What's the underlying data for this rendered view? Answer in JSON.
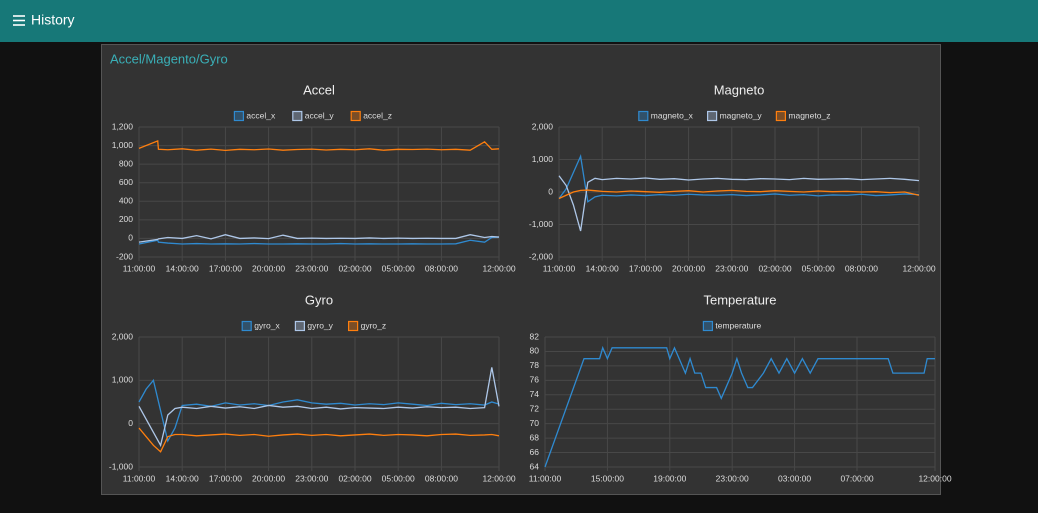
{
  "header": {
    "title": "History"
  },
  "group": {
    "title": "Accel/Magento/Gyro"
  },
  "chart_data": [
    {
      "type": "line",
      "title": "Accel",
      "x": [
        11,
        12.3,
        12.35,
        13,
        14,
        15,
        16,
        17,
        18,
        19,
        20,
        21,
        22,
        23,
        24,
        25,
        26,
        27,
        28,
        29,
        30,
        31,
        32,
        33,
        34,
        35,
        35.5,
        36
      ],
      "series": [
        {
          "name": "accel_x",
          "color": "#2f8ad0",
          "values": [
            -60,
            -20,
            -40,
            -50,
            -60,
            -55,
            -60,
            -58,
            -60,
            -55,
            -60,
            -60,
            -58,
            -60,
            -60,
            -55,
            -60,
            -58,
            -60,
            -60,
            -58,
            -60,
            -60,
            -58,
            -20,
            -40,
            10,
            15
          ]
        },
        {
          "name": "accel_y",
          "color": "#aec7e8",
          "values": [
            -40,
            -10,
            -5,
            10,
            0,
            30,
            -5,
            40,
            0,
            5,
            -2,
            35,
            0,
            3,
            0,
            2,
            0,
            5,
            0,
            3,
            0,
            2,
            0,
            0,
            40,
            10,
            20,
            15
          ]
        },
        {
          "name": "accel_z",
          "color": "#ff7f0e",
          "values": [
            970,
            1050,
            960,
            955,
            965,
            950,
            962,
            948,
            960,
            955,
            963,
            950,
            958,
            962,
            952,
            960,
            955,
            965,
            950,
            960,
            958,
            962,
            955,
            960,
            950,
            1040,
            960,
            965
          ]
        }
      ],
      "xlim": [
        11,
        36
      ],
      "xticks": [
        {
          "value": 11,
          "label": "11:00:00"
        },
        {
          "value": 14,
          "label": "14:00:00"
        },
        {
          "value": 17,
          "label": "17:00:00"
        },
        {
          "value": 20,
          "label": "20:00:00"
        },
        {
          "value": 23,
          "label": "23:00:00"
        },
        {
          "value": 26,
          "label": "02:00:00"
        },
        {
          "value": 29,
          "label": "05:00:00"
        },
        {
          "value": 32,
          "label": "08:00:00"
        },
        {
          "value": 36,
          "label": "12:00:00"
        }
      ],
      "ylim": [
        -200,
        1200
      ],
      "yticks": [
        -200,
        0,
        200,
        400,
        600,
        800,
        {
          "value": 1000,
          "label": "1,000"
        },
        {
          "value": 1200,
          "label": "1,200"
        }
      ],
      "grid": true
    },
    {
      "type": "line",
      "title": "Magneto",
      "x": [
        11,
        11.5,
        12,
        12.5,
        13,
        13.5,
        14,
        15,
        16,
        17,
        18,
        19,
        20,
        21,
        22,
        23,
        24,
        25,
        26,
        27,
        28,
        29,
        30,
        31,
        32,
        33,
        34,
        35,
        36
      ],
      "series": [
        {
          "name": "magneto_x",
          "color": "#2f8ad0",
          "values": [
            -200,
            100,
            600,
            1100,
            -300,
            -150,
            -100,
            -120,
            -90,
            -110,
            -80,
            -100,
            -70,
            -90,
            -100,
            -80,
            -110,
            -90,
            -60,
            -100,
            -80,
            -120,
            -90,
            -100,
            -70,
            -110,
            -90,
            -60,
            -80
          ]
        },
        {
          "name": "magneto_y",
          "color": "#aec7e8",
          "values": [
            500,
            200,
            -400,
            -1200,
            300,
            420,
            380,
            420,
            400,
            430,
            390,
            410,
            370,
            400,
            420,
            390,
            380,
            410,
            400,
            380,
            420,
            390,
            400,
            410,
            380,
            400,
            420,
            390,
            350
          ]
        },
        {
          "name": "magneto_z",
          "color": "#ff7f0e",
          "values": [
            -200,
            -100,
            0,
            50,
            60,
            40,
            20,
            0,
            30,
            10,
            -10,
            20,
            40,
            0,
            30,
            50,
            20,
            10,
            40,
            20,
            0,
            30,
            10,
            20,
            0,
            10,
            -20,
            0,
            -100
          ]
        }
      ],
      "xlim": [
        11,
        36
      ],
      "xticks": [
        {
          "value": 11,
          "label": "11:00:00"
        },
        {
          "value": 14,
          "label": "14:00:00"
        },
        {
          "value": 17,
          "label": "17:00:00"
        },
        {
          "value": 20,
          "label": "20:00:00"
        },
        {
          "value": 23,
          "label": "23:00:00"
        },
        {
          "value": 26,
          "label": "02:00:00"
        },
        {
          "value": 29,
          "label": "05:00:00"
        },
        {
          "value": 32,
          "label": "08:00:00"
        },
        {
          "value": 36,
          "label": "12:00:00"
        }
      ],
      "ylim": [
        -2000,
        2000
      ],
      "yticks": [
        {
          "value": -2000,
          "label": "-2,000"
        },
        {
          "value": -1000,
          "label": "-1,000"
        },
        0,
        {
          "value": 1000,
          "label": "1,000"
        },
        {
          "value": 2000,
          "label": "2,000"
        }
      ],
      "grid": true
    },
    {
      "type": "line",
      "title": "Gyro",
      "x": [
        11,
        11.5,
        12,
        12.5,
        13,
        13.5,
        14,
        15,
        16,
        17,
        18,
        19,
        20,
        21,
        22,
        23,
        24,
        25,
        26,
        27,
        28,
        29,
        30,
        31,
        32,
        33,
        34,
        35,
        35.5,
        36
      ],
      "series": [
        {
          "name": "gyro_x",
          "color": "#2f8ad0",
          "values": [
            500,
            800,
            1000,
            300,
            -400,
            -100,
            420,
            450,
            400,
            480,
            430,
            460,
            420,
            500,
            550,
            480,
            450,
            470,
            430,
            460,
            440,
            480,
            450,
            420,
            470,
            440,
            460,
            430,
            500,
            450
          ]
        },
        {
          "name": "gyro_y",
          "color": "#aec7e8",
          "values": [
            400,
            100,
            -200,
            -500,
            200,
            350,
            380,
            350,
            400,
            360,
            390,
            350,
            420,
            380,
            400,
            350,
            380,
            340,
            370,
            360,
            350,
            380,
            360,
            390,
            370,
            380,
            350,
            370,
            1300,
            400
          ]
        },
        {
          "name": "gyro_z",
          "color": "#ff7f0e",
          "values": [
            -100,
            -300,
            -500,
            -650,
            -300,
            -250,
            -250,
            -280,
            -260,
            -240,
            -270,
            -250,
            -290,
            -260,
            -240,
            -270,
            -250,
            -280,
            -260,
            -240,
            -270,
            -250,
            -260,
            -280,
            -250,
            -240,
            -270,
            -260,
            -250,
            -280
          ]
        }
      ],
      "xlim": [
        11,
        36
      ],
      "xticks": [
        {
          "value": 11,
          "label": "11:00:00"
        },
        {
          "value": 14,
          "label": "14:00:00"
        },
        {
          "value": 17,
          "label": "17:00:00"
        },
        {
          "value": 20,
          "label": "20:00:00"
        },
        {
          "value": 23,
          "label": "23:00:00"
        },
        {
          "value": 26,
          "label": "02:00:00"
        },
        {
          "value": 29,
          "label": "05:00:00"
        },
        {
          "value": 32,
          "label": "08:00:00"
        },
        {
          "value": 36,
          "label": "12:00:00"
        }
      ],
      "ylim": [
        -1000,
        2000
      ],
      "yticks": [
        {
          "value": -1000,
          "label": "-1,000"
        },
        0,
        {
          "value": 1000,
          "label": "1,000"
        },
        {
          "value": 2000,
          "label": "2,000"
        }
      ],
      "grid": true
    },
    {
      "type": "line",
      "title": "Temperature",
      "x": [
        11,
        13.5,
        14.5,
        14.7,
        15,
        15.3,
        15.6,
        18.8,
        19.0,
        19.3,
        19.6,
        20,
        20.3,
        20.6,
        21,
        21.3,
        22,
        22.3,
        22.6,
        23,
        23.3,
        23.6,
        24,
        24.3,
        25,
        25.5,
        26,
        26.5,
        27,
        27.5,
        28,
        28.5,
        29,
        33,
        33.3,
        35.3,
        35.5,
        36
      ],
      "series": [
        {
          "name": "temperature",
          "color": "#2f8ad0",
          "values": [
            64,
            79,
            79,
            80.5,
            79,
            80.5,
            80.5,
            80.5,
            79,
            80.5,
            79,
            77,
            79,
            77,
            77,
            75,
            75,
            73.5,
            75,
            77,
            79,
            77,
            75,
            75,
            77,
            79,
            77,
            79,
            77,
            79,
            77,
            79,
            79,
            79,
            77,
            77,
            79,
            79
          ]
        }
      ],
      "xlim": [
        11,
        36
      ],
      "xticks": [
        {
          "value": 11,
          "label": "11:00:00"
        },
        {
          "value": 15,
          "label": "15:00:00"
        },
        {
          "value": 19,
          "label": "19:00:00"
        },
        {
          "value": 23,
          "label": "23:00:00"
        },
        {
          "value": 27,
          "label": "03:00:00"
        },
        {
          "value": 31,
          "label": "07:00:00"
        },
        {
          "value": 36,
          "label": "12:00:00"
        }
      ],
      "ylim": [
        64,
        82
      ],
      "yticks": [
        64,
        66,
        68,
        70,
        72,
        74,
        76,
        78,
        80,
        82
      ],
      "grid": true
    }
  ]
}
